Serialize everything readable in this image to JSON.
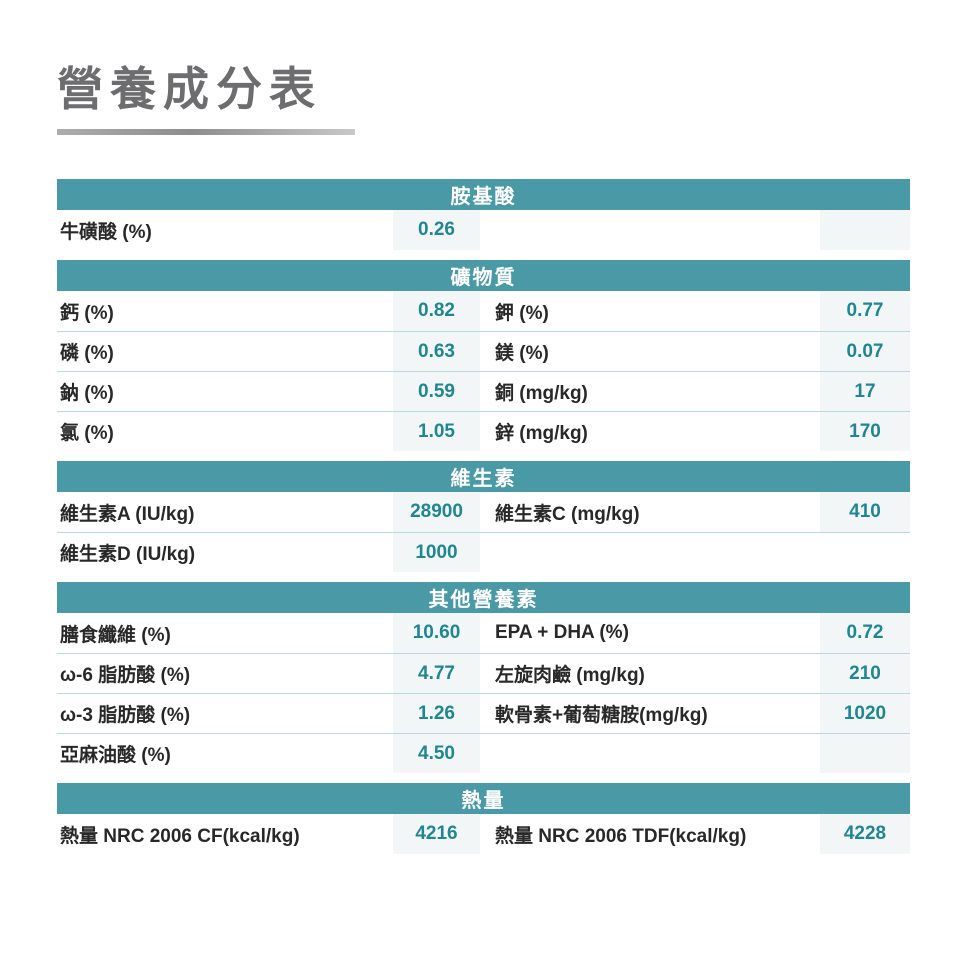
{
  "page": {
    "title": "營養成分表"
  },
  "colors": {
    "header_bg": "#4a99a6",
    "header_text": "#ffffff",
    "value_text": "#1f8694",
    "label_text": "#282828",
    "value_cell_bg": "#f3f6f6",
    "divider": "#b8d9dd",
    "title_text": "#6d6d6f"
  },
  "table": {
    "sections": [
      {
        "header": "胺基酸",
        "rows": [
          {
            "l1": "牛磺酸 (%)",
            "v1": "0.26",
            "l2": "",
            "v2": "",
            "right_cell": true
          }
        ]
      },
      {
        "header": "礦物質",
        "rows": [
          {
            "l1": "鈣 (%)",
            "v1": "0.82",
            "l2": "鉀 (%)",
            "v2": "0.77",
            "right_cell": true
          },
          {
            "l1": "磷 (%)",
            "v1": "0.63",
            "l2": "鎂 (%)",
            "v2": "0.07",
            "right_cell": true
          },
          {
            "l1": "鈉 (%)",
            "v1": "0.59",
            "l2": "銅 (mg/kg)",
            "v2": "17",
            "right_cell": true
          },
          {
            "l1": "氯 (%)",
            "v1": "1.05",
            "l2": "鋅 (mg/kg)",
            "v2": "170",
            "right_cell": true
          }
        ]
      },
      {
        "header": "維生素",
        "rows": [
          {
            "l1": "維生素A (IU/kg)",
            "v1": "28900",
            "l2": "維生素C (mg/kg)",
            "v2": "410",
            "right_cell": true
          },
          {
            "l1": "維生素D (IU/kg)",
            "v1": "1000",
            "l2": "",
            "v2": "",
            "right_cell": false
          }
        ]
      },
      {
        "header": "其他營養素",
        "rows": [
          {
            "l1": "膳食纖維 (%)",
            "v1": "10.60",
            "l2": "EPA + DHA (%)",
            "v2": "0.72",
            "right_cell": true
          },
          {
            "l1": "ω-6 脂肪酸 (%)",
            "v1": "4.77",
            "l2": "左旋肉鹼 (mg/kg)",
            "v2": "210",
            "right_cell": true
          },
          {
            "l1": "ω-3 脂肪酸 (%)",
            "v1": "1.26",
            "l2": "軟骨素+葡萄糖胺(mg/kg)",
            "v2": "1020",
            "right_cell": true
          },
          {
            "l1": "亞麻油酸 (%)",
            "v1": "4.50",
            "l2": "",
            "v2": "",
            "right_cell": true
          }
        ]
      },
      {
        "header": "熱量",
        "rows": [
          {
            "l1": "熱量 NRC 2006 CF(kcal/kg)",
            "v1": "4216",
            "l2": "熱量 NRC 2006 TDF(kcal/kg)",
            "v2": "4228",
            "right_cell": true
          }
        ]
      }
    ]
  }
}
